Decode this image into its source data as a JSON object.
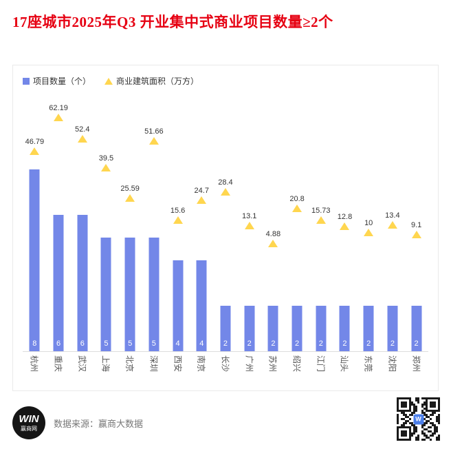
{
  "title": "17座城市2025年Q3 开业集中式商业项目数量≥2个",
  "legend": {
    "bars_label": "项目数量（个）",
    "triangles_label": "商业建筑面积（万方）"
  },
  "footer": {
    "source": "数据来源：赢商大数据",
    "logo_line1": "WIN",
    "logo_line2": "赢商网"
  },
  "colors": {
    "bar": "#7387E8",
    "triangle": "#FFD64F",
    "title_red": "#E60012"
  },
  "chart_data": {
    "type": "bar",
    "title": "17座城市2025年Q3 开业集中式商业项目数量≥2个",
    "categories": [
      "杭州",
      "重庆",
      "武汉",
      "上海",
      "北京",
      "深圳",
      "西安",
      "南京",
      "长沙",
      "广州",
      "苏州",
      "绍兴",
      "江门",
      "汕头",
      "东莞",
      "沈阳",
      "郑州"
    ],
    "series": [
      {
        "name": "项目数量（个）",
        "type": "bar",
        "values": [
          8,
          6,
          6,
          5,
          5,
          5,
          4,
          4,
          2,
          2,
          2,
          2,
          2,
          2,
          2,
          2,
          2
        ]
      },
      {
        "name": "商业建筑面积（万方）",
        "type": "point",
        "marker": "triangle",
        "values": [
          46.79,
          62.19,
          52.4,
          39.5,
          25.59,
          51.66,
          15.6,
          24.7,
          28.4,
          13.1,
          4.88,
          20.8,
          15.73,
          12.8,
          10,
          13.4,
          9.1
        ]
      }
    ],
    "ylim": [
      0,
      9
    ],
    "secondary_ylim": [
      0,
      70
    ],
    "legend_position": "top-left",
    "grid": false
  }
}
